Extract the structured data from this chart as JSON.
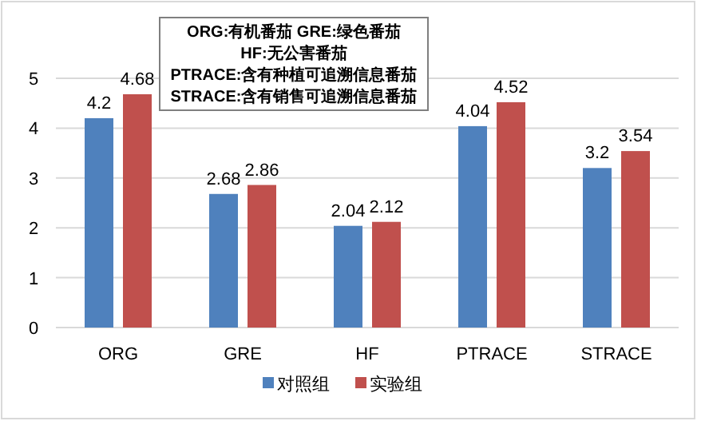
{
  "chart_data": {
    "type": "bar",
    "categories": [
      "ORG",
      "GRE",
      "HF",
      "PTRACE",
      "STRACE"
    ],
    "series": [
      {
        "name": "对照组",
        "color": "#4f81bd",
        "values": [
          4.2,
          2.68,
          2.04,
          4.04,
          3.2
        ]
      },
      {
        "name": "实验组",
        "color": "#c0504d",
        "values": [
          4.68,
          2.86,
          2.12,
          4.52,
          3.54
        ]
      }
    ],
    "ylim": [
      0,
      5
    ],
    "yticks": [
      0,
      1,
      2,
      3,
      4,
      5
    ],
    "grid": "y",
    "legend": "bottom",
    "data_labels": true,
    "annotations": [
      "ORG:有机番茄    GRE:绿色番茄",
      "HF:无公害番茄",
      "PTRACE:含有种植可追溯信息番茄",
      "STRACE:含有销售可追溯信息番茄"
    ]
  }
}
